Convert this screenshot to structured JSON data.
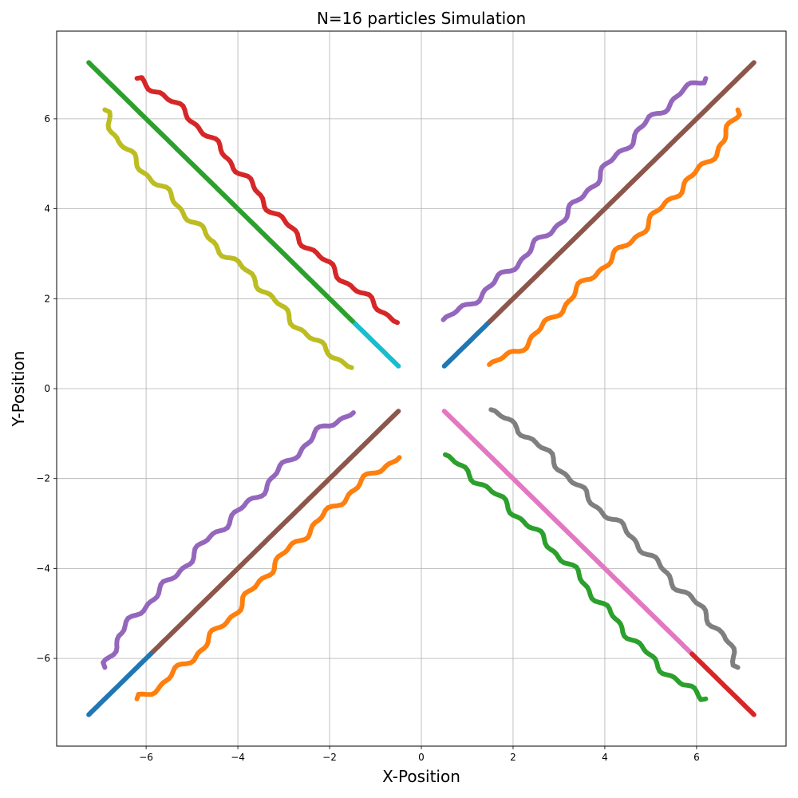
{
  "chart_data": {
    "type": "line",
    "title": "N=16 particles Simulation",
    "xlabel": "X-Position",
    "ylabel": "Y-Position",
    "xlim": [
      -7.95,
      7.95
    ],
    "ylim": [
      -7.95,
      7.95
    ],
    "xticks": [
      -6,
      -4,
      -2,
      0,
      2,
      4,
      6
    ],
    "yticks": [
      -6,
      -4,
      -2,
      0,
      2,
      4,
      6
    ],
    "xtick_labels": [
      "−6",
      "−4",
      "−2",
      "0",
      "2",
      "4",
      "6"
    ],
    "ytick_labels": [
      "−6",
      "−4",
      "−2",
      "0",
      "2",
      "4",
      "6"
    ],
    "grid": true,
    "legend": "none",
    "series": [
      {
        "color": "#d62728",
        "kind": "wavy",
        "x": [
          -0.5,
          -1.0,
          -1.6,
          -2.3,
          -3.2,
          -4.1,
          -5.0,
          -5.7,
          -6.2
        ],
        "y": [
          1.5,
          1.85,
          2.35,
          3.0,
          3.9,
          5.0,
          6.0,
          6.6,
          6.9
        ]
      },
      {
        "color": "#bcbd22",
        "kind": "wavy",
        "x": [
          -1.5,
          -2.1,
          -2.8,
          -3.6,
          -4.6,
          -5.5,
          -6.1,
          -6.6,
          -6.9
        ],
        "y": [
          0.5,
          0.85,
          1.5,
          2.4,
          3.3,
          4.3,
          4.9,
          5.5,
          6.2
        ]
      },
      {
        "color": "#17becf",
        "kind": "straight",
        "x": [
          -0.5,
          -1.5
        ],
        "y": [
          0.5,
          1.5
        ]
      },
      {
        "color": "#2ca02c",
        "kind": "straight",
        "x": [
          -1.5,
          -7.25
        ],
        "y": [
          1.5,
          7.25
        ]
      },
      {
        "color": "#9467bd",
        "kind": "wavy",
        "x": [
          0.5,
          1.0,
          1.6,
          2.3,
          3.2,
          4.1,
          5.0,
          5.7,
          6.2
        ],
        "y": [
          1.5,
          1.85,
          2.35,
          3.0,
          3.9,
          5.0,
          6.0,
          6.6,
          6.9
        ]
      },
      {
        "color": "#ff7f0e",
        "kind": "wavy",
        "x": [
          1.5,
          2.1,
          2.8,
          3.6,
          4.6,
          5.5,
          6.1,
          6.6,
          6.9
        ],
        "y": [
          0.5,
          0.85,
          1.5,
          2.4,
          3.3,
          4.3,
          4.9,
          5.5,
          6.2
        ]
      },
      {
        "color": "#1f77b4",
        "kind": "straight",
        "x": [
          0.5,
          1.5
        ],
        "y": [
          0.5,
          1.5
        ]
      },
      {
        "color": "#8c564b",
        "kind": "straight",
        "x": [
          1.5,
          7.25
        ],
        "y": [
          1.5,
          7.25
        ]
      },
      {
        "color": "#9467bd",
        "kind": "wavy",
        "x": [
          -1.5,
          -2.1,
          -2.8,
          -3.6,
          -4.6,
          -5.5,
          -6.1,
          -6.6,
          -6.9
        ],
        "y": [
          -0.5,
          -0.85,
          -1.5,
          -2.4,
          -3.3,
          -4.3,
          -4.9,
          -5.5,
          -6.2
        ]
      },
      {
        "color": "#ff7f0e",
        "kind": "wavy",
        "x": [
          -0.5,
          -1.0,
          -1.6,
          -2.3,
          -3.2,
          -4.1,
          -5.0,
          -5.7,
          -6.2
        ],
        "y": [
          -1.5,
          -1.85,
          -2.35,
          -3.0,
          -3.9,
          -5.0,
          -6.0,
          -6.6,
          -6.9
        ]
      },
      {
        "color": "#8c564b",
        "kind": "straight",
        "x": [
          -0.5,
          -5.9
        ],
        "y": [
          -0.5,
          -5.9
        ]
      },
      {
        "color": "#1f77b4",
        "kind": "straight",
        "x": [
          -5.9,
          -7.25
        ],
        "y": [
          -5.9,
          -7.25
        ]
      },
      {
        "color": "#7f7f7f",
        "kind": "wavy",
        "x": [
          1.5,
          2.1,
          2.8,
          3.6,
          4.6,
          5.5,
          6.1,
          6.6,
          6.9
        ],
        "y": [
          -0.5,
          -0.85,
          -1.5,
          -2.4,
          -3.3,
          -4.3,
          -4.9,
          -5.5,
          -6.2
        ]
      },
      {
        "color": "#2ca02c",
        "kind": "wavy",
        "x": [
          0.5,
          1.0,
          1.6,
          2.3,
          3.2,
          4.1,
          5.0,
          5.7,
          6.2
        ],
        "y": [
          -1.5,
          -1.85,
          -2.35,
          -3.0,
          -3.9,
          -5.0,
          -6.0,
          -6.6,
          -6.9
        ]
      },
      {
        "color": "#e377c2",
        "kind": "straight",
        "x": [
          0.5,
          5.9
        ],
        "y": [
          -0.5,
          -5.9
        ]
      },
      {
        "color": "#d62728",
        "kind": "straight",
        "x": [
          5.9,
          7.25
        ],
        "y": [
          -5.9,
          -7.25
        ]
      }
    ]
  }
}
